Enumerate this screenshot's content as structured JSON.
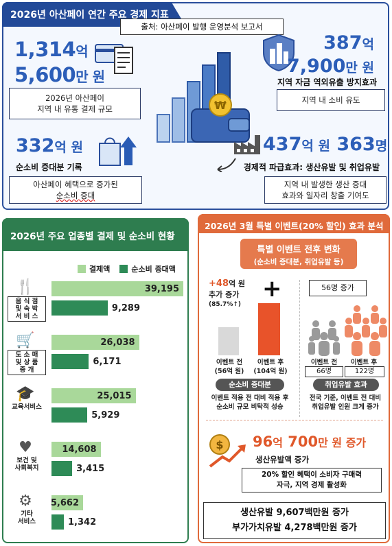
{
  "top": {
    "title": "2026년 아산페이 연간 주요 경제 지표",
    "source": "출처: 아산페이 발행 운영분석 보고서",
    "payment": {
      "line1_num": "1,314",
      "line1_unit": "억",
      "line2_num": "5,600",
      "line2_unit": "만 원",
      "desc1": "2026년 아산페이",
      "desc2": "지역 내 유통 결제 규모"
    },
    "outflow": {
      "line1_num": "387",
      "line1_unit": "억",
      "line2_num": "7,900",
      "line2_unit": "만 원",
      "label": "지역 자금 역외유출 방지효과",
      "desc": "지역 내 소비 유도"
    },
    "consumption": {
      "num": "332",
      "unit": "억 원",
      "label": "순소비 증대분 기록",
      "desc1": "아산페이 혜택으로 증가된",
      "desc2": "순소비 증대"
    },
    "ripple": {
      "num1": "437",
      "unit1": "억 원",
      "num2": "363",
      "unit2": "명",
      "label": "경제적 파급효과: 생산유발 및 취업유발",
      "desc1": "지역 내 발생한 생산 증대",
      "desc2": "효과와 일자리 창출 기여도"
    },
    "coin_symbol": "₩"
  },
  "industry": {
    "title": "2026년 주요 업종별 결제 및 순소비 현황",
    "legend_payment": "결제액",
    "legend_consumption": "순소비 증대액",
    "colors": {
      "payment": "#a9d89a",
      "consumption": "#2e8b57"
    },
    "categories": [
      {
        "label1": "음 식 점",
        "label2": "및 숙 박",
        "label3": "서 비 스",
        "icon": "utensils-icon",
        "payment": "39,195",
        "consumption": "9,289",
        "pv": 39195,
        "cv": 9289
      },
      {
        "label1": "도 소 매",
        "label2": "및 상 품",
        "label3": "중    개",
        "icon": "cart-icon",
        "payment": "26,038",
        "consumption": "6,171",
        "pv": 26038,
        "cv": 6171
      },
      {
        "label1": "교육서비스",
        "label2": "",
        "label3": "",
        "icon": "graduation-cap-icon",
        "payment": "25,015",
        "consumption": "5,929",
        "pv": 25015,
        "cv": 5929
      },
      {
        "label1": "보건 및",
        "label2": "사회복지",
        "label3": "",
        "icon": "heart-hands-icon",
        "payment": "14,608",
        "consumption": "3,415",
        "pv": 14608,
        "cv": 3415
      },
      {
        "label1": "기타",
        "label2": "서비스",
        "label3": "",
        "icon": "gear-icon",
        "payment": "5,662",
        "consumption": "1,342",
        "pv": 5662,
        "cv": 1342
      }
    ]
  },
  "event": {
    "title": "2026년 3월 특별 이벤트(20% 할인) 효과 분석",
    "subtitle1": "특별 이벤트 전후 변화",
    "subtitle2": "(순소비 증대분, 취업유발 등)",
    "increase_num": "+48",
    "increase_unit": "억 원",
    "increase_label": "추가 증가",
    "increase_pct": "(85.7%↑)",
    "plus": "+",
    "before_label": "이벤트 전",
    "before_value": "(56억 원)",
    "after_label": "이벤트 후",
    "after_value": "(104억 원)",
    "consumption_pill": "순소비 증대분",
    "consumption_desc1": "이벤트 적용 전 대비 적용 후",
    "consumption_desc2": "순소비 규모 비탁적 성승",
    "jobs_increase": "56명 증가",
    "jobs_before_label": "이벤트 전",
    "jobs_before_value": "66명",
    "jobs_after_label": "이벤트 후",
    "jobs_after_value": "122명",
    "jobs_pill": "취업유발 효과",
    "jobs_desc1": "전국 기준, 이벤트 전 대비",
    "jobs_desc2": "취업유발 인원 크게 증가",
    "prod_num1": "96",
    "prod_unit1": "억",
    "prod_num2": "700",
    "prod_unit2": "만 원 증가",
    "prod_label": "생산유발액 증가",
    "prod_desc1": "20% 할인 혜택이 소비자 구매력",
    "prod_desc2": "자극, 지역 경제 활성화",
    "final1": "생산유발 9,607백만원 증가",
    "final2": "부가가치유발 4,278백만원 증가",
    "colors": {
      "accent": "#e06a3b",
      "before_bar": "#d9d9d9",
      "after_bar": "#e8532a"
    },
    "chart_before": 56,
    "chart_after": 104
  }
}
